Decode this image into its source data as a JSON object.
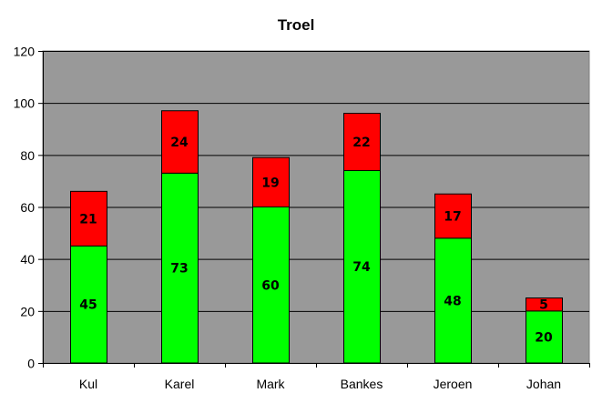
{
  "chart_data": {
    "type": "bar",
    "stacked": true,
    "title": "Troel",
    "xlabel": "",
    "ylabel": "",
    "categories": [
      "Kul",
      "Karel",
      "Mark",
      "Bankes",
      "Jeroen",
      "Johan"
    ],
    "series": [
      {
        "values": [
          45,
          73,
          60,
          74,
          48,
          20
        ],
        "color": "#00ff00"
      },
      {
        "values": [
          21,
          24,
          19,
          22,
          17,
          5
        ],
        "color": "#ff0000"
      }
    ],
    "ylim": [
      0,
      120
    ],
    "yticks": [
      0,
      20,
      40,
      60,
      80,
      100,
      120
    ],
    "grid": true,
    "legend": "none",
    "plot_background": "#999999"
  }
}
